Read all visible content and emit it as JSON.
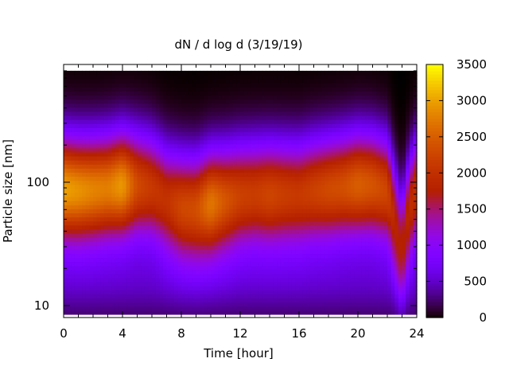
{
  "chart_data": {
    "type": "heatmap",
    "title": "dN / d log d (3/19/19)",
    "xlabel": "Time [hour]",
    "ylabel": "Particle size [nm]",
    "xlim": [
      0,
      24
    ],
    "ylim": [
      8,
      900
    ],
    "yscale": "log",
    "x_ticks": [
      "0",
      "4",
      "8",
      "12",
      "16",
      "20",
      "24"
    ],
    "y_ticks": [
      "10",
      "100"
    ],
    "colorbar": {
      "range": [
        0,
        3500
      ],
      "ticks": [
        "0",
        "500",
        "1000",
        "1500",
        "2000",
        "2500",
        "3000",
        "3500"
      ],
      "palette": "black-purple-red-orange-yellow"
    },
    "data_extent": {
      "x": [
        0,
        24
      ],
      "y": [
        8.5,
        800
      ]
    },
    "profile_hours": [
      0,
      1,
      2,
      3,
      4,
      5,
      6,
      7,
      8,
      9,
      10,
      11,
      12,
      13,
      14,
      15,
      16,
      17,
      18,
      19,
      20,
      21,
      22,
      22.5,
      23,
      23.5,
      24
    ],
    "mode_diameter_nm": [
      88,
      86,
      87,
      90,
      95,
      95,
      90,
      72,
      64,
      62,
      68,
      72,
      78,
      80,
      80,
      80,
      80,
      85,
      88,
      92,
      96,
      95,
      85,
      50,
      30,
      60,
      90
    ],
    "peak_concentration": [
      3000,
      2900,
      2800,
      2750,
      2950,
      2300,
      2100,
      2000,
      2250,
      2300,
      2700,
      2400,
      2200,
      2150,
      2250,
      2150,
      2100,
      2200,
      2300,
      2350,
      2500,
      2400,
      2250,
      1800,
      1500,
      1900,
      2000
    ],
    "grid": false,
    "legend": "none"
  }
}
